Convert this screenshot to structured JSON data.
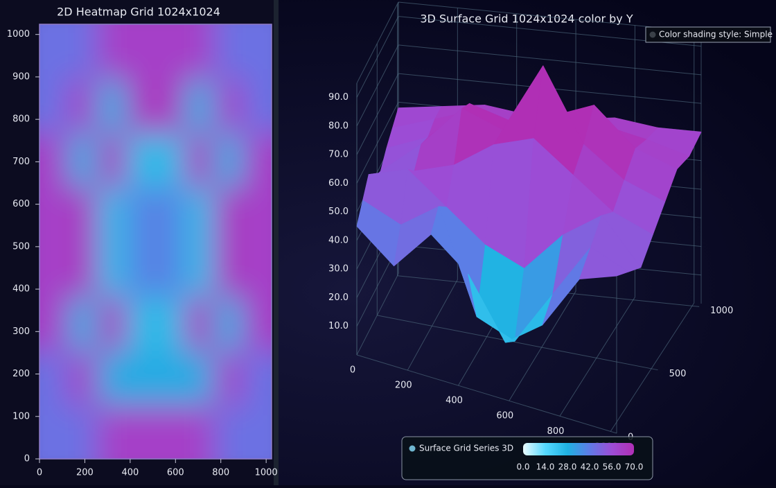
{
  "chart_data": [
    {
      "type": "heatmap",
      "title": "2D Heatmap Grid 1024x1024",
      "xlim": [
        0,
        1024
      ],
      "ylim": [
        0,
        1024
      ],
      "xticks": [
        0,
        200,
        400,
        600,
        800,
        1000
      ],
      "yticks": [
        0,
        100,
        200,
        300,
        400,
        500,
        600,
        700,
        800,
        900,
        1000
      ],
      "clim": [
        0,
        70
      ],
      "colors": [
        "#eafcff",
        "#56d9ff",
        "#1fb2e2",
        "#5f7be6",
        "#9c4dd6",
        "#b02fb5"
      ],
      "values": [
        [
          45,
          45,
          62,
          62,
          62,
          62,
          45,
          45
        ],
        [
          45,
          62,
          30,
          30,
          30,
          30,
          62,
          45
        ],
        [
          62,
          30,
          65,
          25,
          25,
          65,
          30,
          62
        ],
        [
          62,
          65,
          25,
          40,
          40,
          25,
          65,
          62
        ],
        [
          62,
          65,
          25,
          40,
          40,
          25,
          65,
          62
        ],
        [
          62,
          30,
          65,
          25,
          25,
          65,
          30,
          62
        ],
        [
          45,
          62,
          30,
          65,
          65,
          30,
          62,
          45
        ],
        [
          45,
          45,
          62,
          62,
          62,
          62,
          45,
          45
        ]
      ]
    },
    {
      "type": "surface3d",
      "title": "3D Surface Grid 1024x1024 color by Y",
      "xlim": [
        0,
        1024
      ],
      "zlim": [
        0,
        1024
      ],
      "ylim": [
        0,
        95
      ],
      "xticks": [
        0,
        200,
        400,
        600,
        800,
        1000
      ],
      "zticks": [
        0,
        500,
        1000
      ],
      "yticks": [
        {
          "value": 10,
          "label": "10.0"
        },
        {
          "value": 20,
          "label": "20.0"
        },
        {
          "value": 30,
          "label": "30.0"
        },
        {
          "value": 40,
          "label": "40.0"
        },
        {
          "value": 50,
          "label": "50.0"
        },
        {
          "value": 60,
          "label": "60.0"
        },
        {
          "value": 70,
          "label": "70.0"
        },
        {
          "value": 80,
          "label": "80.0"
        },
        {
          "value": 90,
          "label": "90.0"
        }
      ],
      "clim": [
        0,
        70
      ],
      "colors": [
        "#eafcff",
        "#56d9ff",
        "#1fb2e2",
        "#5f7be6",
        "#9c4dd6",
        "#b02fb5"
      ],
      "values": [
        [
          45,
          35,
          50,
          40,
          20,
          30,
          50,
          55
        ],
        [
          50,
          45,
          55,
          20,
          15,
          35,
          55,
          50
        ],
        [
          55,
          60,
          50,
          40,
          35,
          50,
          60,
          45
        ],
        [
          50,
          55,
          60,
          70,
          75,
          65,
          55,
          50
        ],
        [
          48,
          60,
          75,
          70,
          95,
          70,
          60,
          55
        ],
        [
          52,
          58,
          72,
          68,
          72,
          78,
          65,
          60
        ],
        [
          55,
          60,
          65,
          62,
          62,
          65,
          62,
          58
        ],
        [
          58,
          60,
          62,
          60,
          60,
          62,
          60,
          60
        ]
      ],
      "series_name": "Surface Grid Series 3D",
      "legend_ticks": [
        {
          "value": 0,
          "label": "0.0"
        },
        {
          "value": 14,
          "label": "14.0"
        },
        {
          "value": 28,
          "label": "28.0"
        },
        {
          "value": 42,
          "label": "42.0"
        },
        {
          "value": 56,
          "label": "56.0"
        },
        {
          "value": 70,
          "label": "70.0"
        }
      ],
      "shading_label": "Color shading style: Simple"
    }
  ]
}
